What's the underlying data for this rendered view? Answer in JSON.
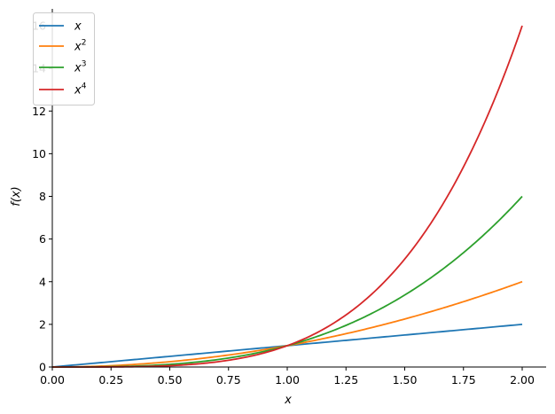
{
  "chart_data": {
    "type": "line",
    "xlabel": "x",
    "ylabel": "f(x)",
    "xlim": [
      0,
      2.1
    ],
    "ylim": [
      0,
      16
    ],
    "x_ticks": [
      0.0,
      0.25,
      0.5,
      0.75,
      1.0,
      1.25,
      1.5,
      1.75,
      2.0
    ],
    "x_tick_labels": [
      "0.00",
      "0.25",
      "0.50",
      "0.75",
      "1.00",
      "1.25",
      "1.50",
      "1.75",
      "2.00"
    ],
    "y_ticks": [
      0,
      2,
      4,
      6,
      8,
      10,
      12,
      14,
      16
    ],
    "y_tick_labels": [
      "0",
      "2",
      "4",
      "6",
      "8",
      "10",
      "12",
      "14",
      "16"
    ],
    "grid": false,
    "legend": {
      "placement": "top-left"
    },
    "x": [
      0.0,
      0.25,
      0.5,
      0.75,
      1.0,
      1.25,
      1.5,
      1.75,
      2.0
    ],
    "series": [
      {
        "name": "x",
        "base": "x",
        "exp": "",
        "color": "#1f77b4",
        "values": [
          0.0,
          0.25,
          0.5,
          0.75,
          1.0,
          1.25,
          1.5,
          1.75,
          2.0
        ]
      },
      {
        "name": "x^2",
        "base": "x",
        "exp": "2",
        "color": "#ff7f0e",
        "values": [
          0.0,
          0.0625,
          0.25,
          0.5625,
          1.0,
          1.5625,
          2.25,
          3.0625,
          4.0
        ]
      },
      {
        "name": "x^3",
        "base": "x",
        "exp": "3",
        "color": "#2ca02c",
        "values": [
          0.0,
          0.0156,
          0.125,
          0.4219,
          1.0,
          1.9531,
          3.375,
          5.3594,
          8.0
        ]
      },
      {
        "name": "x^4",
        "base": "x",
        "exp": "4",
        "color": "#d62728",
        "values": [
          0.0,
          0.0039,
          0.0625,
          0.3164,
          1.0,
          2.4414,
          5.0625,
          9.3789,
          16.0
        ]
      }
    ]
  }
}
